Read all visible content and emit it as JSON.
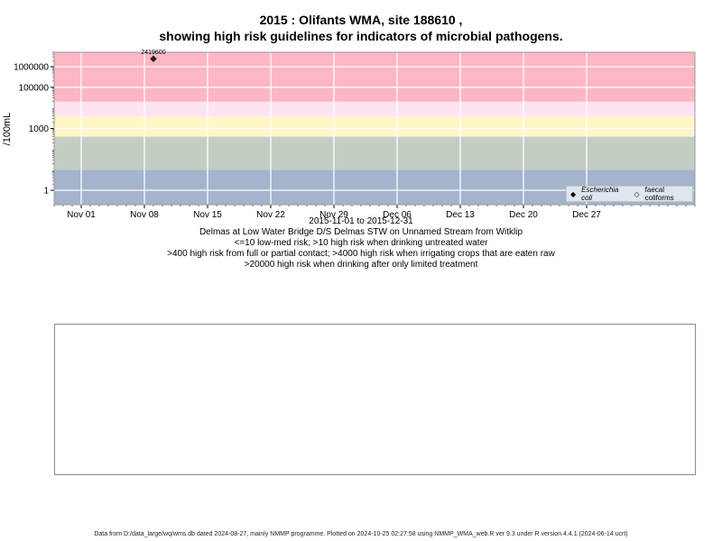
{
  "title_line1": "2015 : Olifants WMA, site 188610 ,",
  "title_line2": "showing high risk guidelines for indicators of microbial pathogens.",
  "chart_data": {
    "type": "scatter",
    "y_scale": "log",
    "ylabel": "/100mL",
    "ylim": [
      0.2,
      5000000
    ],
    "yticks": [
      1,
      1000,
      100000,
      1000000
    ],
    "ytick_labels": [
      "1",
      "1000",
      "100000",
      "1000000"
    ],
    "x_range": [
      "2015-10-29",
      "2016-01-08"
    ],
    "xticks": [
      "2015-11-01",
      "2015-11-08",
      "2015-11-15",
      "2015-11-22",
      "2015-11-29",
      "2015-12-06",
      "2015-12-13",
      "2015-12-20",
      "2015-12-27"
    ],
    "xtick_labels": [
      "Nov 01",
      "Nov 08",
      "Nov 15",
      "Nov 22",
      "Nov 29",
      "Dec 06",
      "Dec 13",
      "Dec 20",
      "Dec 27"
    ],
    "bands": [
      {
        "from": 0.2,
        "to": 10,
        "color": "#a3b4cc"
      },
      {
        "from": 10,
        "to": 400,
        "color": "#c4cdc2"
      },
      {
        "from": 400,
        "to": 4000,
        "color": "#fff6c8"
      },
      {
        "from": 4000,
        "to": 20000,
        "color": "#ffe3f3"
      },
      {
        "from": 20000,
        "to": 5000000,
        "color": "#ffb6c4"
      }
    ],
    "series": [
      {
        "name": "Escherichia coli",
        "marker": "filled-diamond",
        "points": [
          {
            "x": "2015-11-09",
            "y": 2419600,
            "label": "2419600"
          }
        ]
      },
      {
        "name": "faecal coliforms",
        "marker": "open-diamond",
        "points": []
      }
    ],
    "grid": true,
    "legend_position": "bottom-right"
  },
  "under_text": {
    "date_range": "2015-11-01 to 2015-12-31",
    "site_desc": "Delmas at Low Water Bridge D/S Delmas STW on Unnamed Stream from Witklip",
    "risk1": "<=10 low-med risk; >10 high risk when drinking untreated water",
    "risk2": ">400 high risk from full or partial contact; >4000 high risk when irrigating crops that are eaten raw",
    "risk3": ">20000 high risk when drinking after only limited treatment"
  },
  "legend": {
    "ecoli": "Escherichia coli",
    "faecal": "faecal coliforms"
  },
  "footer": "Data from D:/data_large/wq/wms.db dated 2024-08-27, mainly NMMP programme. Plotted on 2024-10-25 02:27:58 using NMMP_WMA_web.R ver 9.3 under R version 4.4.1 (2024-06-14 ucrt)"
}
